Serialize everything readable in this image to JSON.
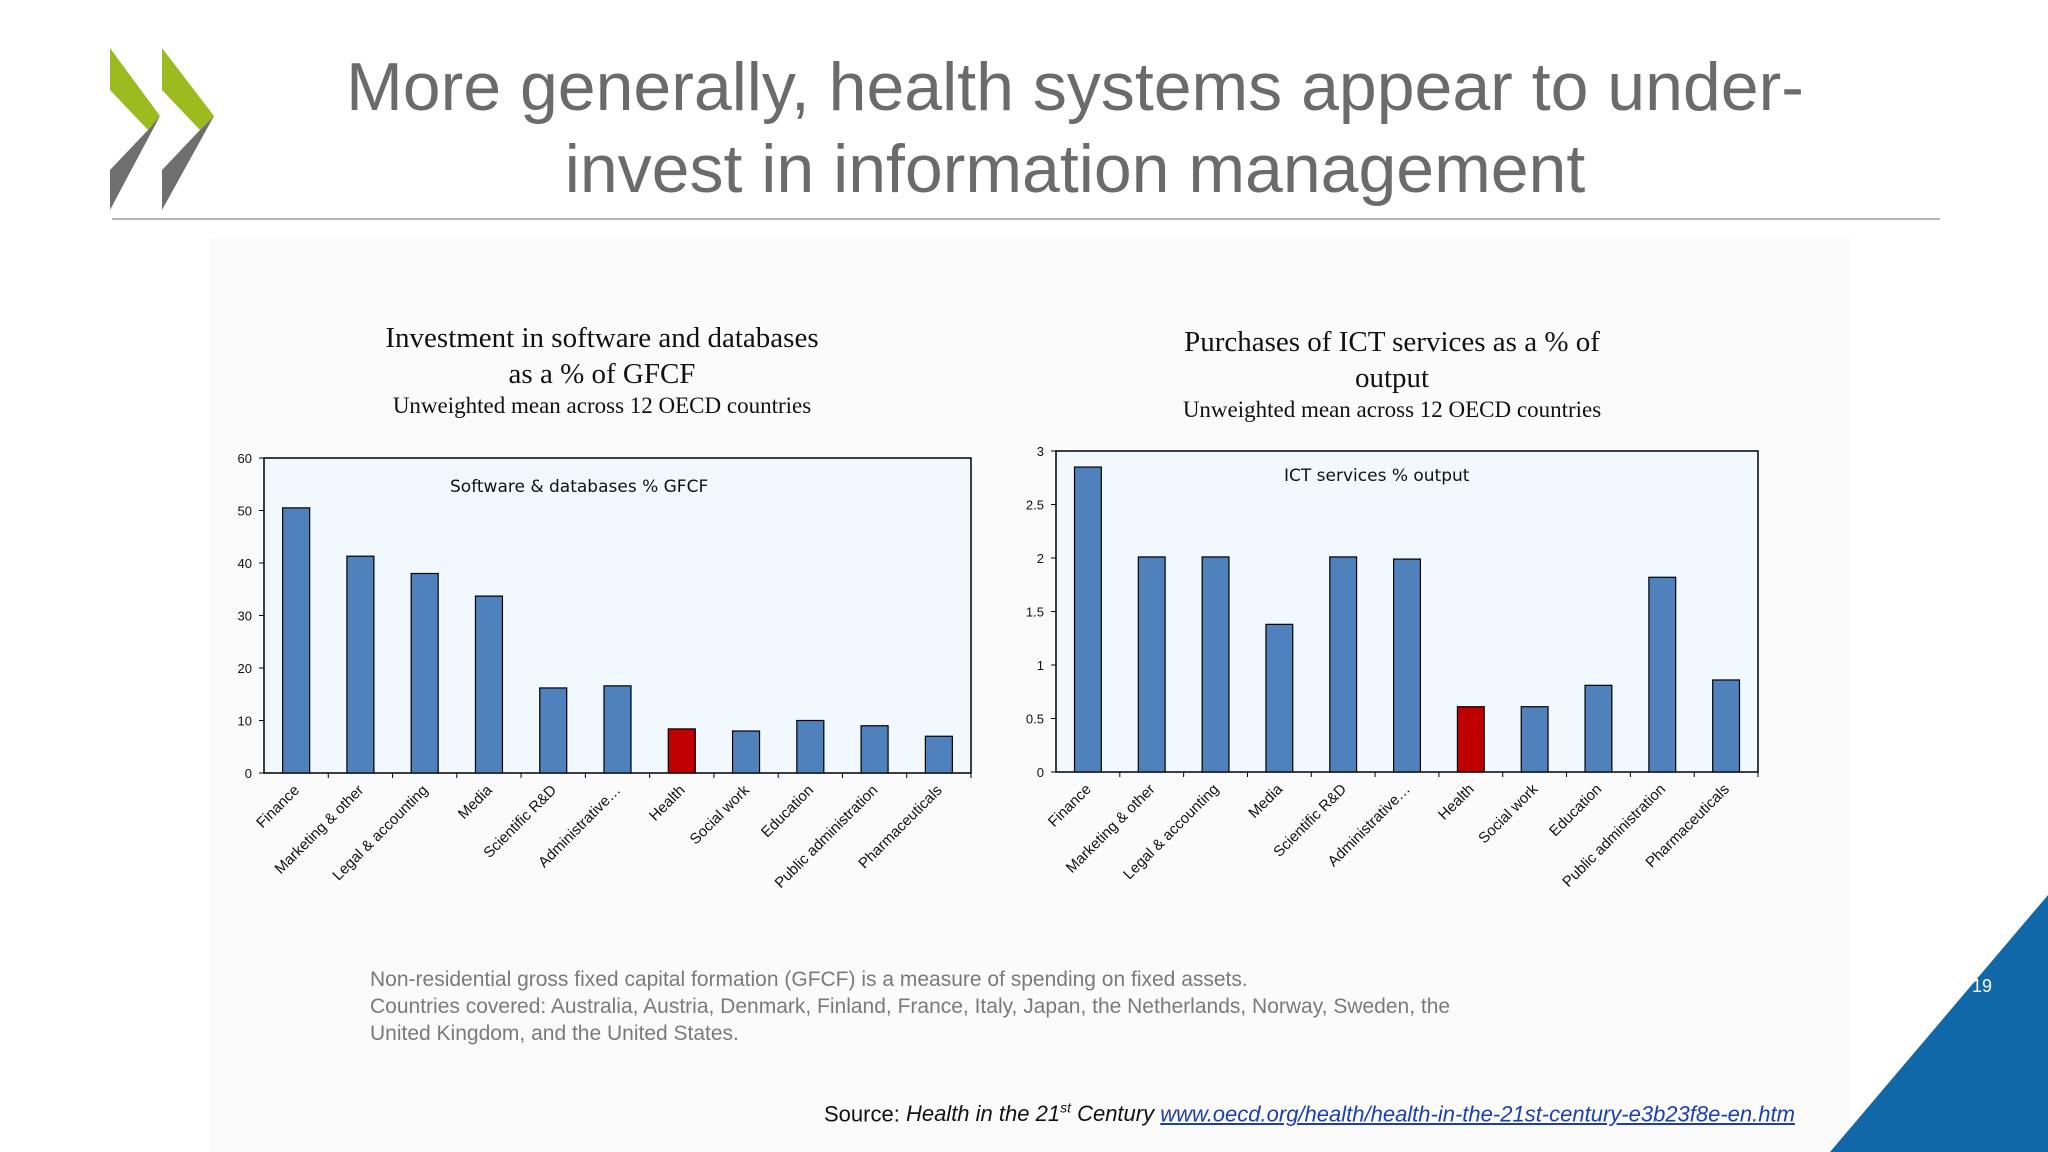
{
  "slide": {
    "title_line1": "More generally, health systems appear to under-",
    "title_line2": "invest in information management",
    "page_number": "19",
    "notes": [
      "Non-residential gross fixed capital formation (GFCF) is a measure of spending on fixed assets.",
      "Countries covered: Australia, Austria, Denmark, Finland, France, Italy, Japan, the Netherlands, Norway, Sweden, the",
      "United Kingdom, and the United States."
    ],
    "source": {
      "label": "Source:",
      "publication_prefix": "Health in the 21",
      "publication_sup": "st",
      "publication_suffix": "Century",
      "url_text": "www.oecd.org/health/health-in-the-21st-century-e3b23f8e-en.htm"
    },
    "colors": {
      "title_gray": "#6b6b6b",
      "logo_green": "#9bbb1f",
      "logo_gray": "#6f6f6f",
      "bar_blue": "#4f81bd",
      "highlight_red": "#c00000",
      "plot_bg": "#f1f9fe",
      "corner_blue": "#1168a8"
    }
  },
  "chart_data": [
    {
      "type": "bar",
      "title_line1": "Investment in software and databases",
      "title_line2": "as a % of GFCF",
      "subtitle": "Unweighted mean across 12 OECD countries",
      "series_label": "Software & databases % GFCF",
      "categories": [
        "Finance",
        "Marketing & other",
        "Legal & accounting",
        "Media",
        "Scientific R&D",
        "Administrative…",
        "Health",
        "Social work",
        "Education",
        "Public administration",
        "Pharmaceuticals"
      ],
      "values": [
        50.5,
        41.3,
        38.0,
        33.7,
        16.2,
        16.6,
        8.4,
        8.0,
        10.0,
        9.0,
        7.0
      ],
      "highlight_category": "Health",
      "ylim": [
        0,
        60
      ],
      "yticks": [
        0,
        10,
        20,
        30,
        40,
        50,
        60
      ],
      "ytick_labels": [
        "0",
        "10",
        "20",
        "30",
        "40",
        "50",
        "60"
      ],
      "grid": false
    },
    {
      "type": "bar",
      "title_line1": "Purchases of ICT services as a % of",
      "title_line2": "output",
      "subtitle": "Unweighted mean across 12 OECD countries",
      "series_label": "ICT services % output",
      "categories": [
        "Finance",
        "Marketing & other",
        "Legal & accounting",
        "Media",
        "Scientific R&D",
        "Administrative…",
        "Health",
        "Social work",
        "Education",
        "Public administration",
        "Pharmaceuticals"
      ],
      "values": [
        2.85,
        2.01,
        2.01,
        1.38,
        2.01,
        1.99,
        0.61,
        0.61,
        0.81,
        1.82,
        0.86
      ],
      "highlight_category": "Health",
      "ylim": [
        0,
        3
      ],
      "yticks": [
        0,
        0.5,
        1,
        1.5,
        2,
        2.5,
        3
      ],
      "ytick_labels": [
        "0",
        "0.5",
        "1",
        "1.5",
        "2",
        "2.5",
        "3"
      ],
      "grid": false
    }
  ]
}
